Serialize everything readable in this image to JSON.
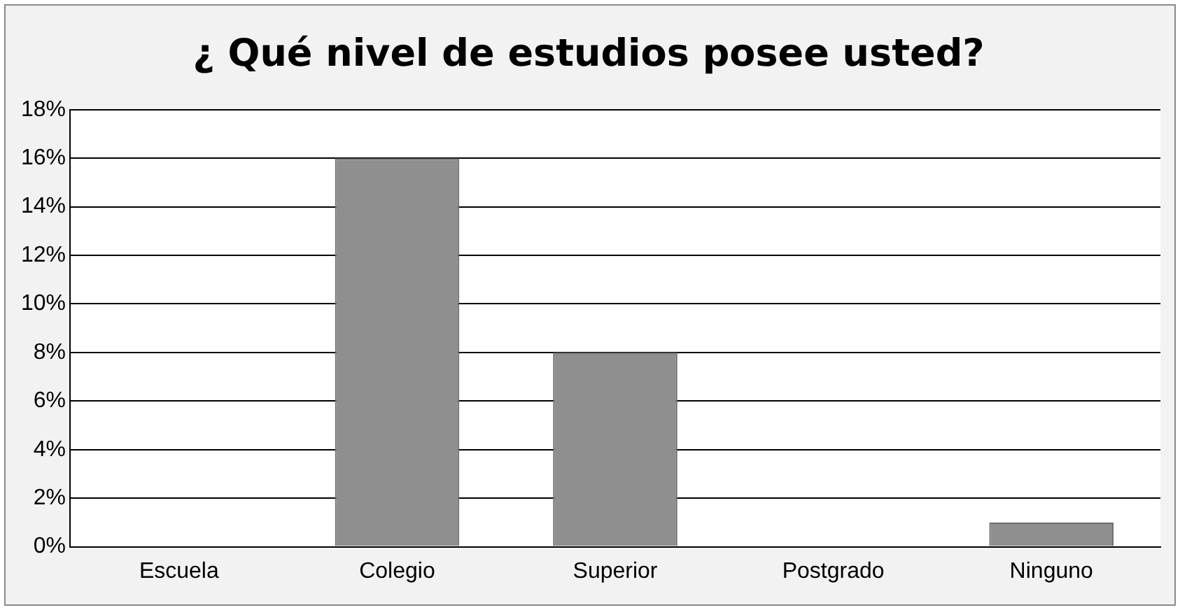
{
  "chart_data": {
    "type": "bar",
    "title": "¿ Qué nivel de estudios posee usted?",
    "categories": [
      "Escuela",
      "Colegio",
      "Superior",
      "Postgrado",
      "Ninguno"
    ],
    "values": [
      0,
      16,
      8,
      0,
      1
    ],
    "color": "#8f8f8f",
    "ylim": [
      0,
      18
    ],
    "yticks": [
      {
        "value": 0,
        "label": "0%"
      },
      {
        "value": 2,
        "label": "2%"
      },
      {
        "value": 4,
        "label": "4%"
      },
      {
        "value": 6,
        "label": "6%"
      },
      {
        "value": 8,
        "label": "8%"
      },
      {
        "value": 10,
        "label": "10%"
      },
      {
        "value": 12,
        "label": "12%"
      },
      {
        "value": 14,
        "label": "14%"
      },
      {
        "value": 16,
        "label": "16%"
      },
      {
        "value": 18,
        "label": "18%"
      }
    ],
    "grid": "y",
    "legend": false
  }
}
